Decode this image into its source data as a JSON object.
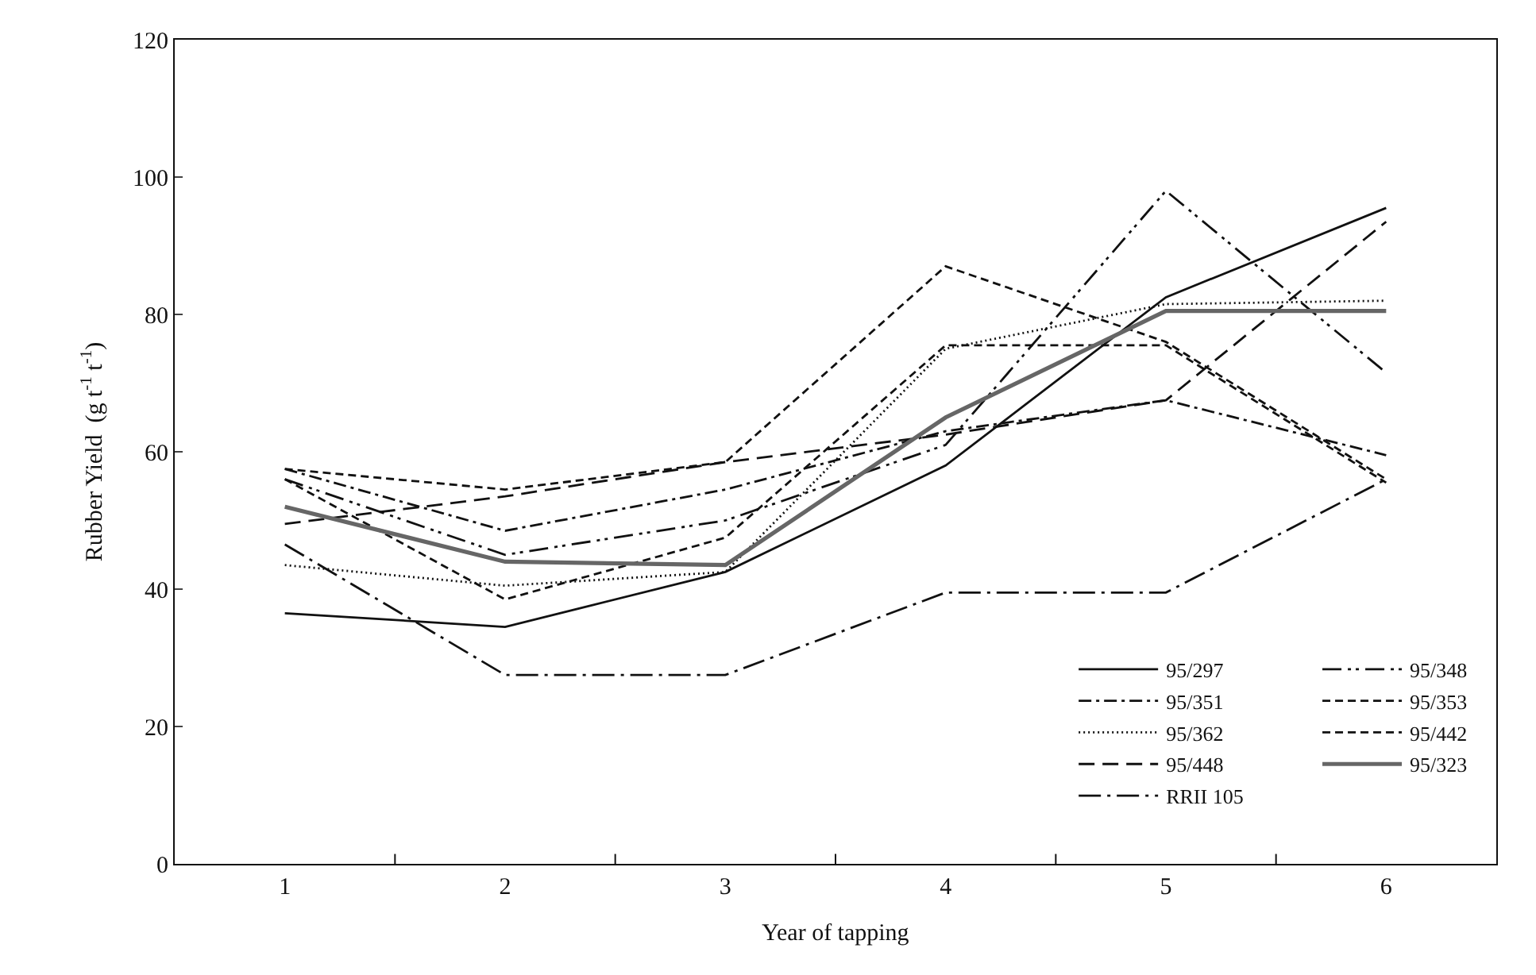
{
  "chart_data": {
    "type": "line",
    "xlabel": "Year of tapping",
    "ylabel": "Rubber Yield  (g t$^{-1}$ t$^{-1}$)",
    "categories": [
      "1",
      "2",
      "3",
      "4",
      "5",
      "6"
    ],
    "ylim": [
      0,
      120
    ],
    "yticks": [
      0,
      20,
      40,
      60,
      80,
      100,
      120
    ],
    "legend": "bottom right",
    "marker": "none",
    "series": [
      {
        "name": "95/297",
        "color": "#111111",
        "line_style": "solid",
        "values": [
          36.5,
          34.5,
          42.5,
          58,
          82.5,
          95.5
        ]
      },
      {
        "name": "95/348",
        "color": "#111111",
        "line_style": "longdashdotdot",
        "values": [
          56,
          45,
          50,
          61,
          98,
          71.5
        ]
      },
      {
        "name": "95/351",
        "color": "#111111",
        "line_style": "dashdot",
        "values": [
          57.5,
          48.5,
          54.5,
          63,
          67.5,
          59.5
        ]
      },
      {
        "name": "95/353",
        "color": "#111111",
        "line_style": "dashed",
        "values": [
          57.5,
          54.5,
          58.5,
          87,
          76,
          56
        ]
      },
      {
        "name": "95/362",
        "color": "#111111",
        "line_style": "dotted",
        "values": [
          43.5,
          40.5,
          42.5,
          75,
          81.5,
          82
        ]
      },
      {
        "name": "95/442",
        "color": "#111111",
        "line_style": "dashed",
        "values": [
          56,
          38.5,
          47.5,
          75.5,
          75.5,
          55.5
        ]
      },
      {
        "name": "95/448",
        "color": "#111111",
        "line_style": "longdash",
        "values": [
          49.5,
          53.5,
          58.5,
          62.5,
          67.5,
          93.5
        ]
      },
      {
        "name": "95/323",
        "color": "#666666",
        "line_style": "solid",
        "values": [
          52,
          44,
          43.5,
          65,
          80.5,
          80.5
        ]
      },
      {
        "name": "RRII 105",
        "color": "#111111",
        "line_style": "longdashdot",
        "values": [
          46.5,
          27.5,
          27.5,
          39.5,
          39.5,
          56
        ]
      }
    ]
  }
}
